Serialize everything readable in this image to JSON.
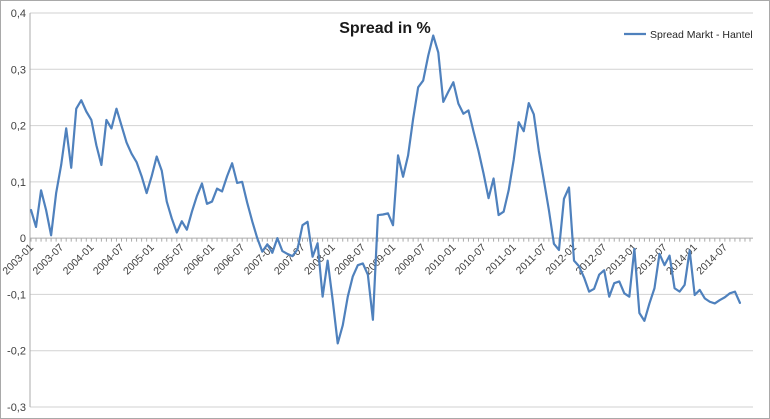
{
  "chart": {
    "title": "Spread in %",
    "legend_label": "Spread Markt - Hantel"
  },
  "chart_data": {
    "type": "line",
    "title": "Spread in %",
    "x_type": "monthly-categories",
    "x_start": "2003-01",
    "x_end": "2014-10",
    "x_tick_labels": [
      "2003-01",
      "2003-07",
      "2004-01",
      "2004-07",
      "2005-01",
      "2005-07",
      "2006-01",
      "2006-07",
      "2007-01",
      "2007-07",
      "2008-01",
      "2008-07",
      "2009-01",
      "2009-07",
      "2010-01",
      "2010-07",
      "2011-01",
      "2011-07",
      "2012-01",
      "2012-07",
      "2013-01",
      "2013-07",
      "2014-01",
      "2014-07"
    ],
    "y_tick_labels": [
      "0,4",
      "0,3",
      "0,2",
      "0,1",
      "0",
      "-0,1",
      "-0,2",
      "-0,3"
    ],
    "y_tick_values": [
      0.4,
      0.3,
      0.2,
      0.1,
      0,
      -0.1,
      -0.2,
      -0.3
    ],
    "ylim": [
      -0.3,
      0.4
    ],
    "grid": true,
    "legend_position": "top-right",
    "decimal_separator_displayed": ",",
    "series": [
      {
        "name": "Spread Markt - Hantel",
        "color": "#4F81BD",
        "values": [
          0.05,
          0.02,
          0.085,
          0.05,
          0.005,
          0.08,
          0.13,
          0.195,
          0.125,
          0.23,
          0.245,
          0.225,
          0.21,
          0.165,
          0.13,
          0.21,
          0.195,
          0.23,
          0.2,
          0.17,
          0.15,
          0.135,
          0.11,
          0.08,
          0.11,
          0.145,
          0.12,
          0.065,
          0.035,
          0.01,
          0.03,
          0.015,
          0.047,
          0.075,
          0.097,
          0.061,
          0.065,
          0.088,
          0.083,
          0.11,
          0.133,
          0.098,
          0.1,
          0.063,
          0.03,
          0.0,
          -0.024,
          -0.011,
          -0.026,
          0.0,
          -0.023,
          -0.028,
          -0.032,
          -0.02,
          0.023,
          0.029,
          -0.033,
          -0.009,
          -0.104,
          -0.04,
          -0.11,
          -0.187,
          -0.155,
          -0.104,
          -0.068,
          -0.048,
          -0.045,
          -0.065,
          -0.145,
          0.041,
          0.042,
          0.044,
          0.023,
          0.147,
          0.109,
          0.147,
          0.212,
          0.268,
          0.28,
          0.324,
          0.36,
          0.33,
          0.242,
          0.26,
          0.277,
          0.239,
          0.221,
          0.227,
          0.19,
          0.155,
          0.115,
          0.071,
          0.106,
          0.041,
          0.047,
          0.085,
          0.139,
          0.206,
          0.19,
          0.24,
          0.22,
          0.155,
          0.103,
          0.05,
          -0.01,
          -0.021,
          0.07,
          0.09,
          -0.04,
          -0.05,
          -0.07,
          -0.095,
          -0.09,
          -0.065,
          -0.057,
          -0.104,
          -0.08,
          -0.077,
          -0.098,
          -0.104,
          -0.019,
          -0.133,
          -0.147,
          -0.116,
          -0.089,
          -0.028,
          -0.048,
          -0.031,
          -0.089,
          -0.095,
          -0.083,
          -0.022,
          -0.101,
          -0.092,
          -0.107,
          -0.113,
          -0.116,
          -0.11,
          -0.105,
          -0.098,
          -0.095,
          -0.115
        ]
      }
    ]
  },
  "colors": {
    "series_line": "#4F81BD",
    "gridline": "#D2D2D2",
    "axis": "#ABABAB",
    "tick_text": "#404040",
    "title_text": "#1A1A1A",
    "chart_border": "#A9A9A9",
    "background": "#FFFFFF"
  }
}
